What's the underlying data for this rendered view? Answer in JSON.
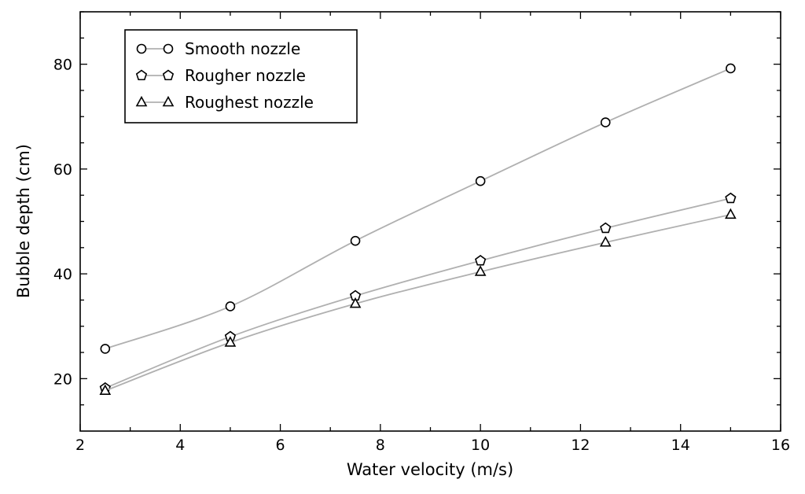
{
  "chart_data": {
    "type": "line",
    "title": "",
    "xlabel": "Water velocity (m/s)",
    "ylabel": "Bubble depth (cm)",
    "xlim": [
      2,
      16
    ],
    "ylim": [
      10,
      90
    ],
    "xticks": [
      2,
      4,
      6,
      8,
      10,
      12,
      14,
      16
    ],
    "yticks": [
      20,
      40,
      60,
      80
    ],
    "grid": false,
    "legend_position": "top-left",
    "line_color": "#b0b0b0",
    "marker_color": "#000000",
    "x": [
      2.5,
      5,
      7.5,
      10,
      12.5,
      15
    ],
    "series": [
      {
        "name": "Smooth nozzle",
        "marker": "circle",
        "values": [
          25.7,
          33.8,
          46.3,
          57.7,
          68.9,
          79.2
        ]
      },
      {
        "name": "Rougher nozzle",
        "marker": "pentagon",
        "values": [
          18.2,
          28.0,
          35.8,
          42.5,
          48.7,
          54.4
        ]
      },
      {
        "name": "Roughest nozzle",
        "marker": "triangle",
        "values": [
          17.7,
          26.9,
          34.3,
          40.4,
          46.0,
          51.3
        ]
      }
    ]
  }
}
